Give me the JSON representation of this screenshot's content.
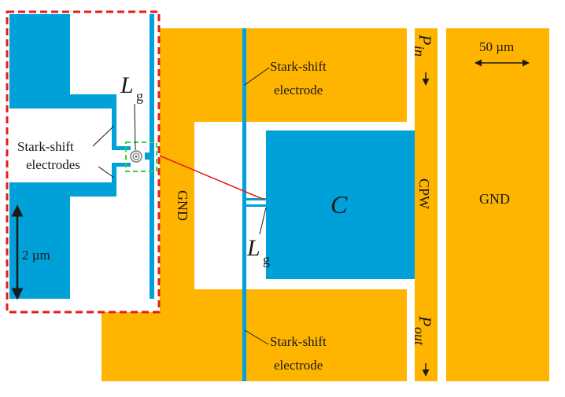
{
  "colors": {
    "gold": "#ffb400",
    "blue": "#00a0d8",
    "red_dash": "#e41c1c",
    "green_dash": "#2fd43a",
    "connector": "#e41c1c",
    "text": "#1a1a1a"
  },
  "labels": {
    "stark_top_line1": "Stark-shift",
    "stark_top_line2": "electrode",
    "stark_bottom_line1": "Stark-shift",
    "stark_bottom_line2": "electrode",
    "inset_stark_line1": "Stark-shift",
    "inset_stark_line2": "electrodes",
    "inset_inductor_main": "L",
    "inset_inductor_sub": "g",
    "main_inductor_main": "L",
    "main_inductor_sub": "g",
    "capacitor": "C",
    "gnd_left": "GND",
    "gnd_right": "GND",
    "cpw": "CPW",
    "p_in_main": "P",
    "p_in_sub": "in",
    "p_out_main": "P",
    "p_out_sub": "out",
    "scale_main": "50 µm",
    "scale_inset": "2 µm"
  },
  "icons": {
    "scale_main": "double-arrow-horizontal-icon",
    "scale_inset": "double-arrow-vertical-icon",
    "p_in_arrow": "arrow-down-icon",
    "p_out_arrow": "arrow-down-icon",
    "inductor": "spiral-inductor-icon"
  }
}
